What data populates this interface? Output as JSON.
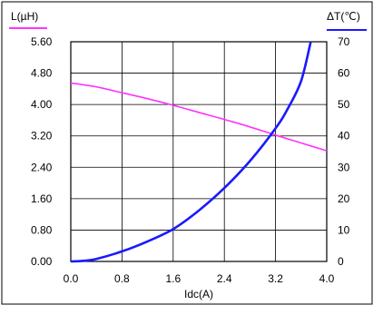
{
  "chart_data": {
    "type": "line",
    "xlabel": "Idc(A)",
    "ylabel_left": "L(µH)",
    "ylabel_right": "ΔT(℃)",
    "x_ticks": [
      "0.0",
      "0.8",
      "1.6",
      "2.4",
      "3.2",
      "4.0"
    ],
    "y_left_ticks": [
      "0.00",
      "0.80",
      "1.60",
      "2.40",
      "3.20",
      "4.00",
      "4.80",
      "5.60"
    ],
    "y_right_ticks": [
      "0",
      "10",
      "20",
      "30",
      "40",
      "50",
      "60",
      "70"
    ],
    "xlim": [
      0,
      4.0
    ],
    "ylim_left": [
      0,
      5.6
    ],
    "ylim_right": [
      0,
      70
    ],
    "grid": true,
    "series": [
      {
        "axis": "left",
        "color": "#ff33ff",
        "x": [
          0.0,
          0.4,
          0.8,
          1.2,
          1.6,
          2.0,
          2.4,
          2.8,
          3.2,
          3.6,
          4.0
        ],
        "y": [
          4.55,
          4.45,
          4.3,
          4.15,
          3.98,
          3.8,
          3.62,
          3.43,
          3.22,
          3.02,
          2.82
        ]
      },
      {
        "axis": "right",
        "color": "#1a1aff",
        "x": [
          0.0,
          0.2,
          0.4,
          0.8,
          1.2,
          1.6,
          2.0,
          2.4,
          2.8,
          3.2,
          3.4,
          3.6,
          3.75
        ],
        "y": [
          0,
          0.2,
          0.8,
          3.2,
          6.4,
          10.3,
          16.2,
          23.4,
          32,
          42.4,
          49,
          57.5,
          70
        ]
      }
    ]
  }
}
